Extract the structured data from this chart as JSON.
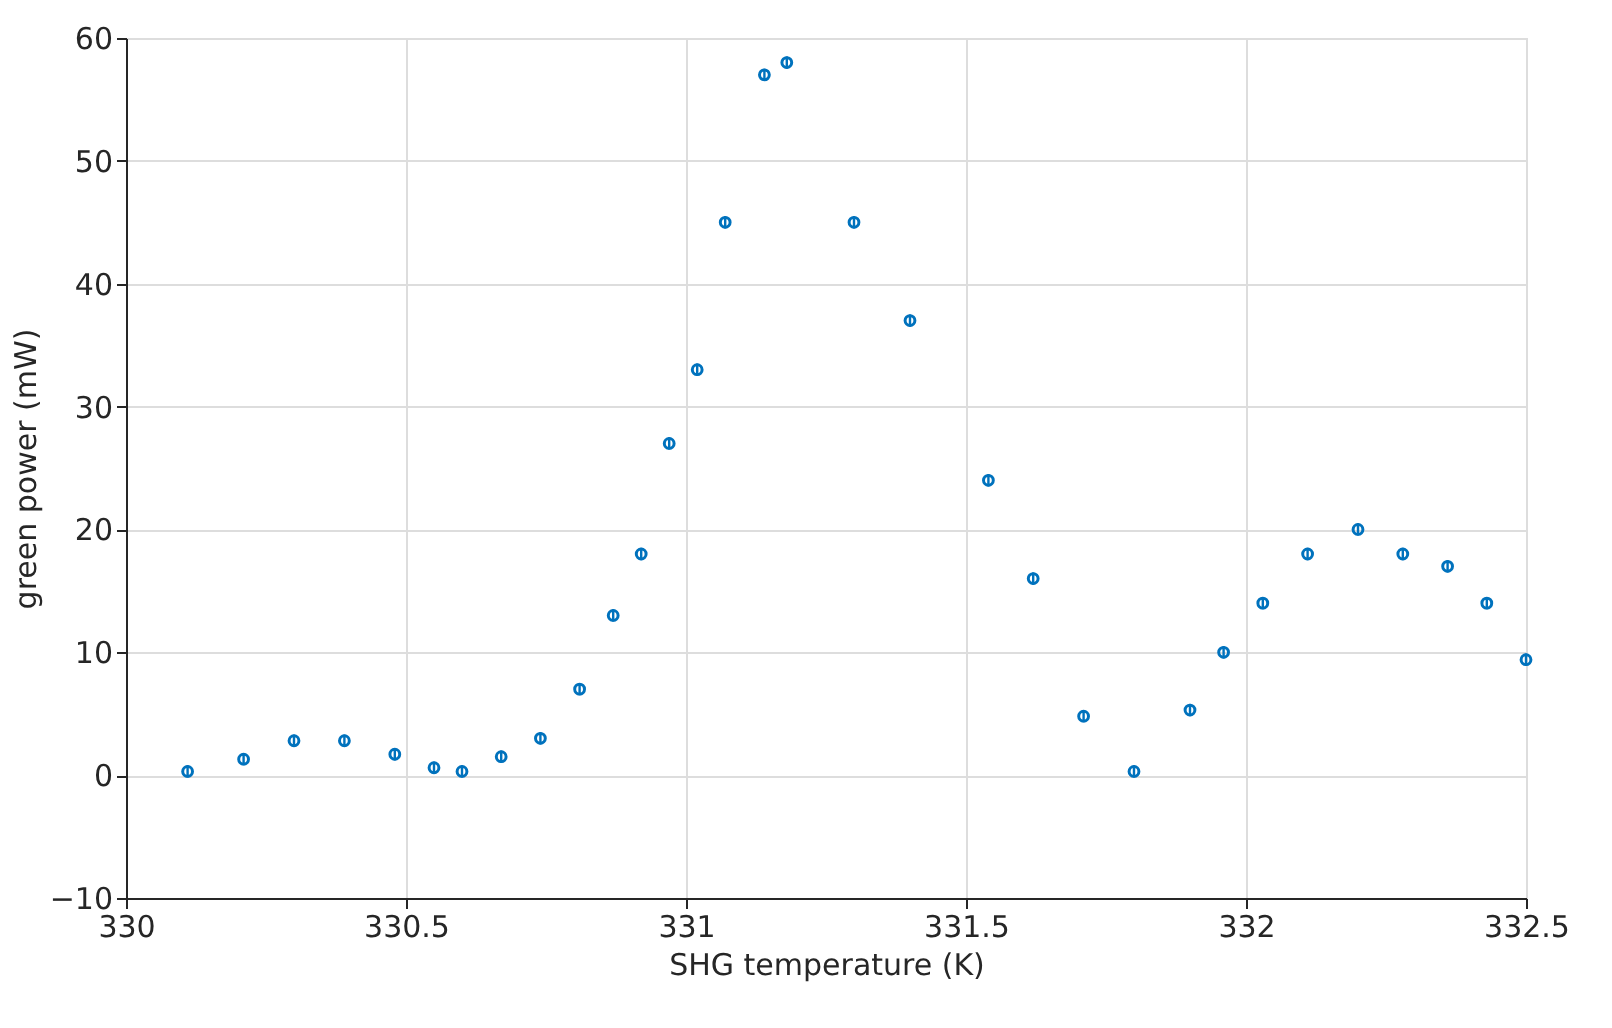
{
  "chart_data": {
    "type": "scatter",
    "xlabel": "SHG temperature (K)",
    "ylabel": "green power (mW)",
    "x": [
      330.11,
      330.21,
      330.3,
      330.39,
      330.48,
      330.55,
      330.6,
      330.67,
      330.74,
      330.81,
      330.87,
      330.92,
      330.97,
      331.02,
      331.07,
      331.14,
      331.18,
      331.3,
      331.4,
      331.54,
      331.62,
      331.71,
      331.8,
      331.9,
      331.96,
      332.03,
      332.11,
      332.2,
      332.28,
      332.36,
      332.43,
      332.5
    ],
    "series": [
      {
        "color": "#0072bd",
        "values": [
          0.3,
          1.3,
          2.8,
          2.8,
          1.7,
          0.6,
          0.3,
          1.5,
          3,
          7,
          13,
          18,
          27,
          33,
          45,
          57,
          58,
          45,
          37,
          24,
          16,
          4.8,
          0.3,
          5.3,
          10,
          14,
          18,
          20,
          18,
          17,
          14,
          9.4
        ],
        "errors": [
          0.5,
          0.5,
          0.5,
          0.5,
          0.5,
          0.5,
          0.5,
          0.5,
          0.5,
          0.5,
          0.5,
          0.5,
          0.5,
          0.5,
          0.5,
          0.5,
          0.5,
          0.5,
          0.5,
          0.5,
          0.5,
          0.5,
          0.5,
          0.5,
          0.5,
          0.5,
          0.5,
          0.5,
          0.5,
          0.5,
          0.5,
          0.5
        ]
      }
    ],
    "xlim": [
      330,
      332.5
    ],
    "xticks": [
      330,
      330.5,
      331,
      331.5,
      332,
      332.5
    ],
    "ylim": [
      -10,
      60
    ],
    "yticks": [
      -10,
      0,
      10,
      20,
      30,
      40,
      50,
      60
    ],
    "grid": true,
    "marker": "circle"
  }
}
